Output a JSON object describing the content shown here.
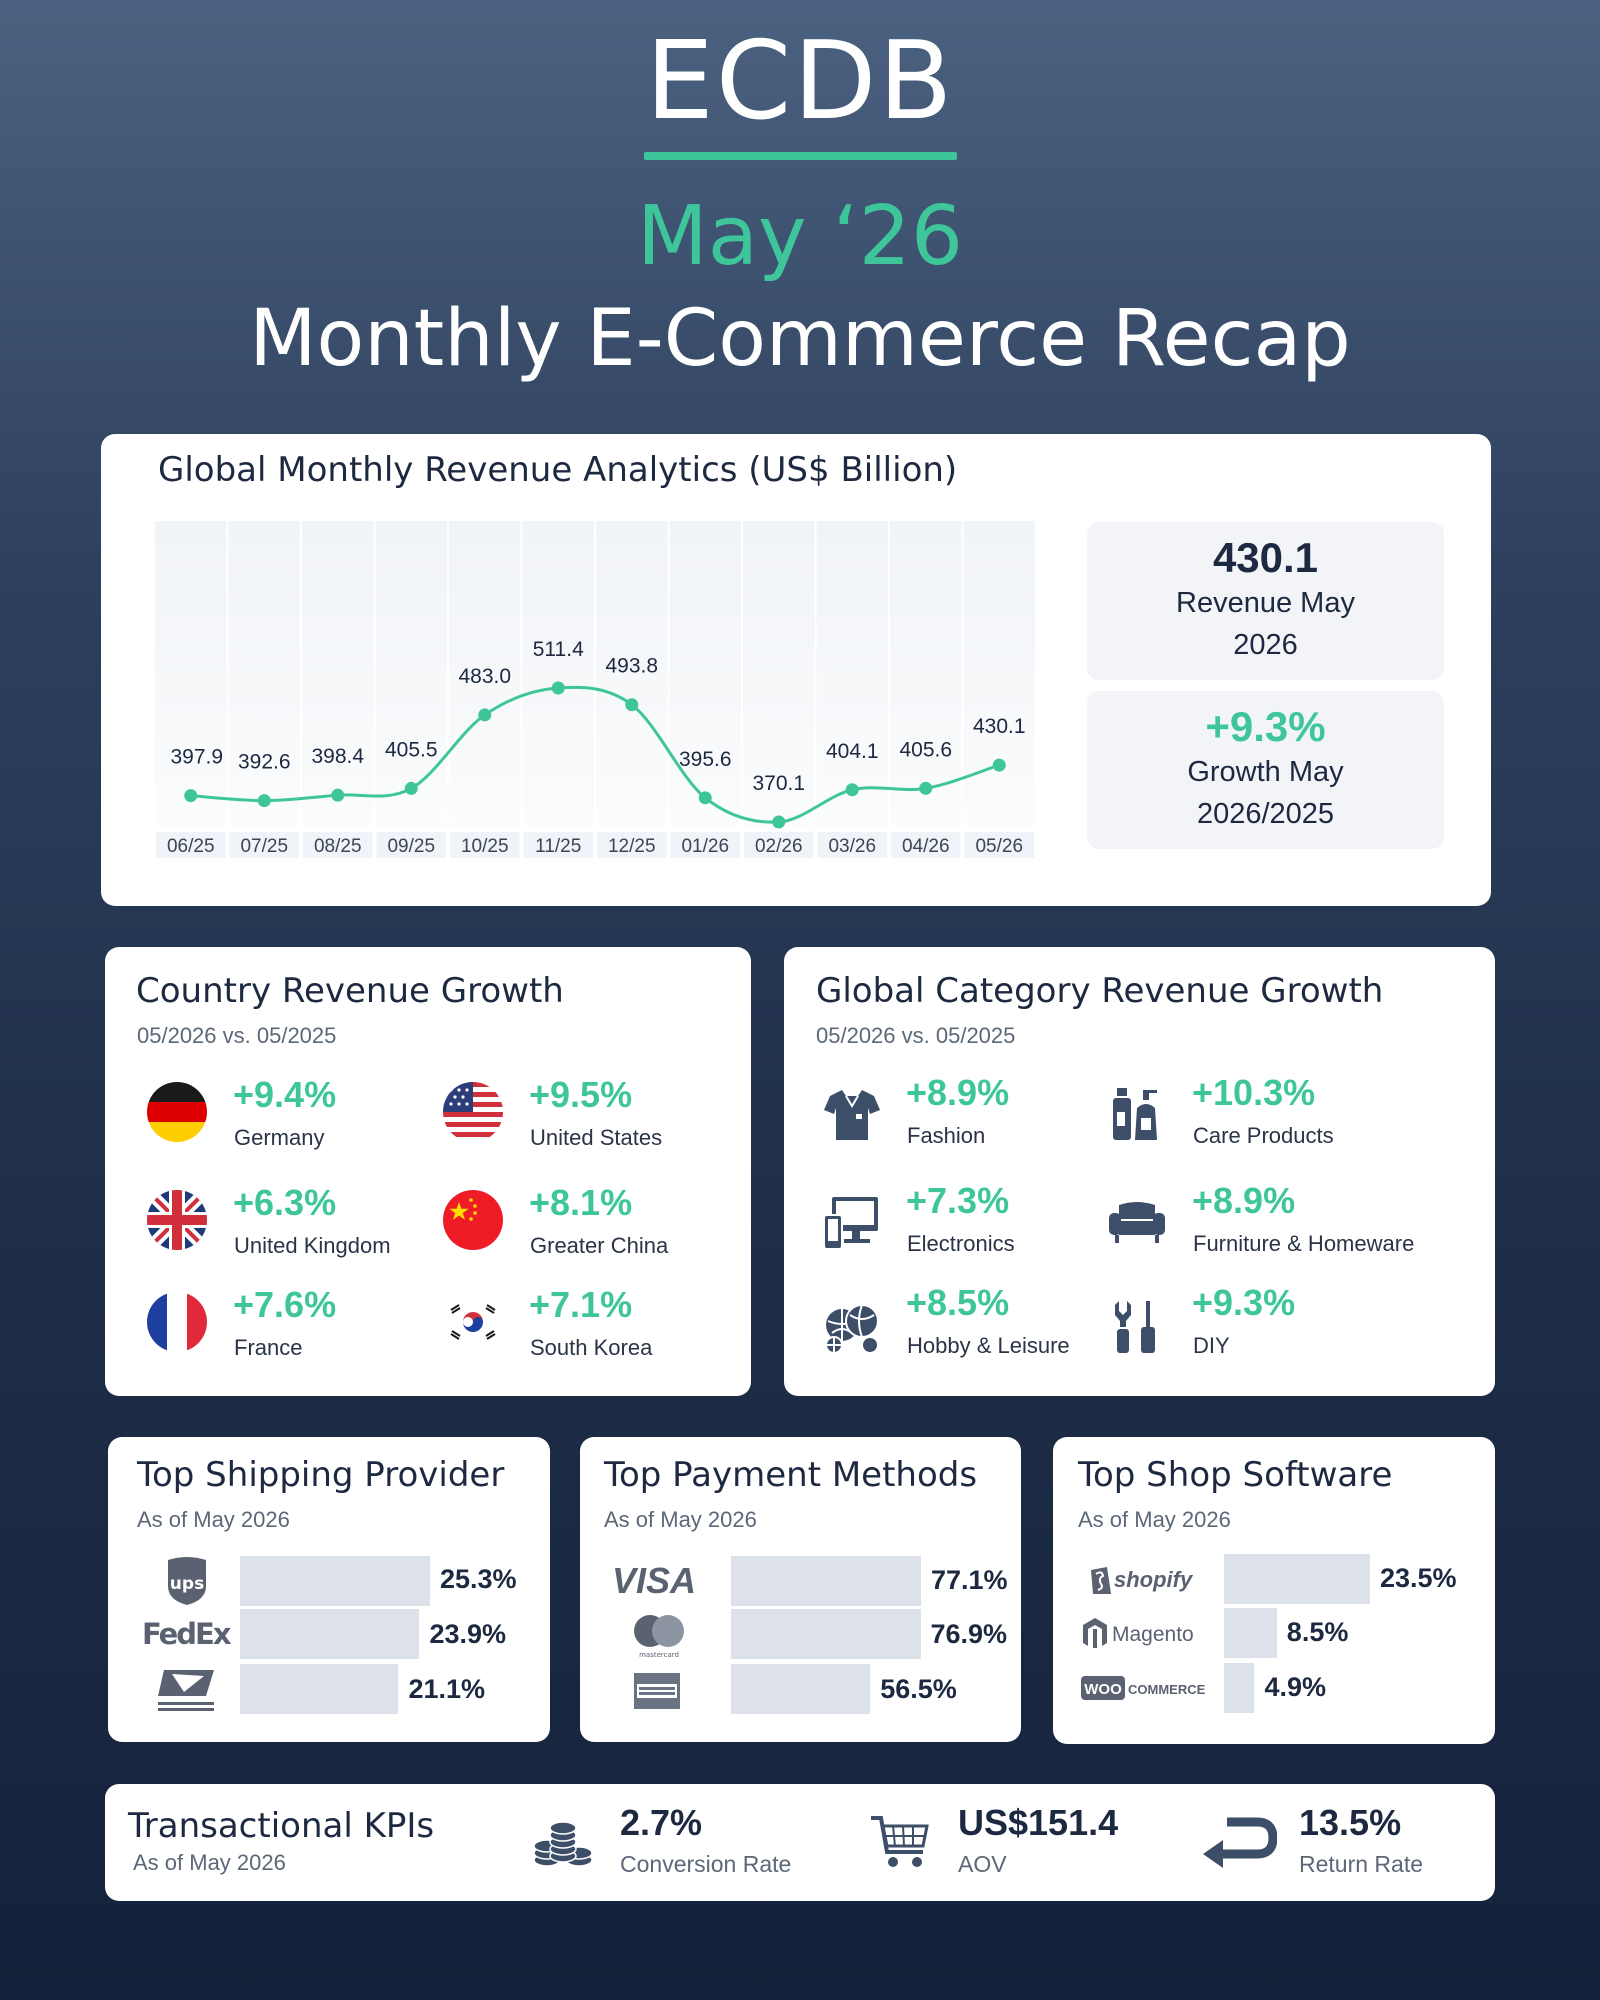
{
  "header": {
    "brand": "ECDB",
    "month": "May ‘26",
    "title": "Monthly E-Commerce Recap"
  },
  "revenue": {
    "title": "Global Monthly Revenue Analytics (US$ Billion)",
    "stat_revenue": {
      "value": "430.1",
      "label_line1": "Revenue May",
      "label_line2": "2026"
    },
    "stat_growth": {
      "value": "+9.3%",
      "label_line1": "Growth May",
      "label_line2": "2026/2025"
    }
  },
  "chart_data": {
    "type": "line",
    "categories": [
      "06/25",
      "07/25",
      "08/25",
      "09/25",
      "10/25",
      "11/25",
      "12/25",
      "01/26",
      "02/26",
      "03/26",
      "04/26",
      "05/26"
    ],
    "series": [
      {
        "values": [
          397.9,
          392.6,
          398.4,
          405.5,
          483.0,
          511.4,
          493.8,
          395.6,
          370.1,
          404.1,
          405.6,
          430.1
        ]
      }
    ],
    "value_labels": [
      "397.9",
      "392.6",
      "398.4",
      "405.5",
      "483.0",
      "511.4",
      "493.8",
      "395.6",
      "370.1",
      "404.1",
      "405.6",
      "430.1"
    ],
    "title": "Global Monthly Revenue Analytics (US$ Billion)",
    "color": "#3ec69a",
    "grid": false
  },
  "country": {
    "title": "Country Revenue Growth",
    "subtitle": "05/2026 vs. 05/2025",
    "items": [
      {
        "value": "+9.4%",
        "label": "Germany",
        "icon": "germany-flag-icon"
      },
      {
        "value": "+9.5%",
        "label": "United States",
        "icon": "us-flag-icon"
      },
      {
        "value": "+6.3%",
        "label": "United Kingdom",
        "icon": "uk-flag-icon"
      },
      {
        "value": "+8.1%",
        "label": "Greater China",
        "icon": "china-flag-icon"
      },
      {
        "value": "+7.6%",
        "label": "France",
        "icon": "france-flag-icon"
      },
      {
        "value": "+7.1%",
        "label": "South Korea",
        "icon": "south-korea-flag-icon"
      }
    ]
  },
  "category": {
    "title": "Global Category Revenue Growth",
    "subtitle": "05/2026 vs. 05/2025",
    "items": [
      {
        "value": "+8.9%",
        "label": "Fashion",
        "icon": "shirt-icon"
      },
      {
        "value": "+10.3%",
        "label": "Care Products",
        "icon": "bottles-icon"
      },
      {
        "value": "+7.3%",
        "label": "Electronics",
        "icon": "devices-icon"
      },
      {
        "value": "+8.9%",
        "label": "Furniture & Homeware",
        "icon": "sofa-icon"
      },
      {
        "value": "+8.5%",
        "label": "Hobby & Leisure",
        "icon": "balls-icon"
      },
      {
        "value": "+9.3%",
        "label": "DIY",
        "icon": "tools-icon"
      }
    ]
  },
  "shipping": {
    "title": "Top Shipping Provider",
    "subtitle": "As of May 2026",
    "items": [
      {
        "logo": "ups",
        "share": 25.3,
        "label": "25.3%"
      },
      {
        "logo": "FedEx",
        "share": 23.9,
        "label": "23.9%"
      },
      {
        "logo": "usps",
        "share": 21.1,
        "label": "21.1%"
      }
    ]
  },
  "payment": {
    "title": "Top Payment Methods",
    "subtitle": "As of May 2026",
    "items": [
      {
        "logo": "VISA",
        "share": 77.1,
        "label": "77.1%"
      },
      {
        "logo": "mastercard",
        "share": 76.9,
        "label": "76.9%"
      },
      {
        "logo": "american-express",
        "share": 56.5,
        "label": "56.5%"
      }
    ]
  },
  "shop": {
    "title": "Top Shop Software",
    "subtitle": "As of May 2026",
    "items": [
      {
        "logo": "shopify",
        "share": 23.5,
        "label": "23.5%"
      },
      {
        "logo": "Magento",
        "share": 8.5,
        "label": "8.5%"
      },
      {
        "logo": "woocommerce",
        "share": 4.9,
        "label": "4.9%"
      }
    ]
  },
  "kpi": {
    "title": "Transactional KPIs",
    "subtitle": "As of May 2026",
    "items": [
      {
        "value": "2.7%",
        "label": "Conversion Rate",
        "icon": "coins-icon"
      },
      {
        "value": "US$151.4",
        "label": "AOV",
        "icon": "cart-icon"
      },
      {
        "value": "13.5%",
        "label": "Return Rate",
        "icon": "return-arrow-icon"
      }
    ]
  },
  "colors": {
    "accent": "#3ec69a",
    "dark": "#1d2940"
  }
}
